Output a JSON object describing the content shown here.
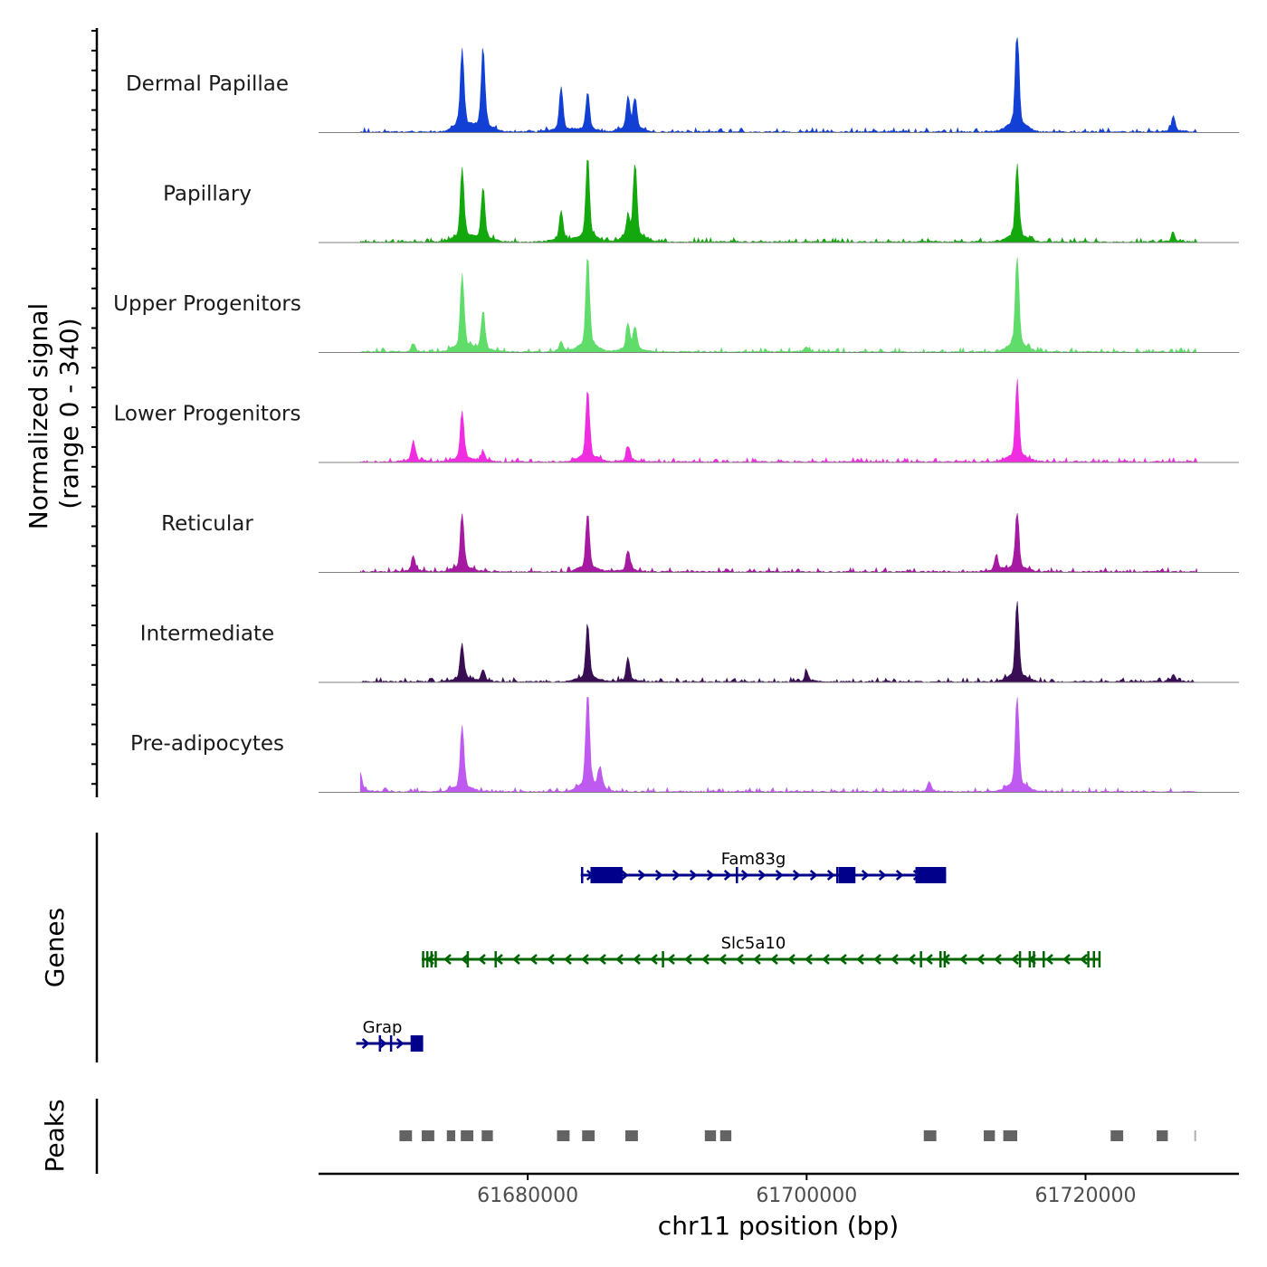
{
  "chart_data": {
    "type": "area",
    "title": "",
    "chromosome": "chr11",
    "xlabel": "chr11 position (bp)",
    "ylabel_line1": "Normalized signal",
    "ylabel_line2": "(range 0 - 340)",
    "y_range": [
      0,
      340
    ],
    "xlim": [
      61665000,
      61731000
    ],
    "x_ticks": [
      61680000,
      61700000,
      61720000
    ],
    "x_tick_labels": [
      "61680000",
      "61700000",
      "61720000"
    ],
    "tracks": [
      {
        "name": "Dermal Papillae",
        "color": "#1240d4",
        "peaks": [
          [
            61675300,
            0.78
          ],
          [
            61676800,
            0.78
          ],
          [
            61682400,
            0.42
          ],
          [
            61684300,
            0.38
          ],
          [
            61687200,
            0.32
          ],
          [
            61687700,
            0.3
          ],
          [
            61715100,
            1.0
          ],
          [
            61726300,
            0.15
          ]
        ]
      },
      {
        "name": "Papillary",
        "color": "#13a80d",
        "peaks": [
          [
            61675300,
            0.7
          ],
          [
            61676800,
            0.52
          ],
          [
            61682400,
            0.3
          ],
          [
            61684300,
            0.78
          ],
          [
            61687200,
            0.2
          ],
          [
            61687700,
            0.73
          ],
          [
            61715100,
            0.73
          ],
          [
            61726300,
            0.08
          ]
        ]
      },
      {
        "name": "Upper Progenitors",
        "color": "#5fdc6a",
        "peaks": [
          [
            61671800,
            0.08
          ],
          [
            61675300,
            0.73
          ],
          [
            61676800,
            0.38
          ],
          [
            61682400,
            0.1
          ],
          [
            61684300,
            0.92
          ],
          [
            61687200,
            0.25
          ],
          [
            61687700,
            0.22
          ],
          [
            61700000,
            0.05
          ],
          [
            61715100,
            0.92
          ]
        ]
      },
      {
        "name": "Lower Progenitors",
        "color": "#f02de0",
        "peaks": [
          [
            61671800,
            0.2
          ],
          [
            61675300,
            0.47
          ],
          [
            61676800,
            0.1
          ],
          [
            61684300,
            0.68
          ],
          [
            61687200,
            0.15
          ],
          [
            61715100,
            0.75
          ]
        ]
      },
      {
        "name": "Reticular",
        "color": "#a51aa0",
        "peaks": [
          [
            61671800,
            0.15
          ],
          [
            61675300,
            0.55
          ],
          [
            61684300,
            0.55
          ],
          [
            61687200,
            0.2
          ],
          [
            61713600,
            0.15
          ],
          [
            61715100,
            0.55
          ]
        ]
      },
      {
        "name": "Intermediate",
        "color": "#3a0e55",
        "peaks": [
          [
            61675300,
            0.35
          ],
          [
            61676800,
            0.12
          ],
          [
            61684300,
            0.53
          ],
          [
            61687200,
            0.22
          ],
          [
            61700000,
            0.1
          ],
          [
            61715100,
            0.76
          ],
          [
            61726300,
            0.07
          ]
        ]
      },
      {
        "name": "Pre-adipocytes",
        "color": "#be5af0",
        "peaks": [
          [
            61668000,
            0.18
          ],
          [
            61675300,
            0.62
          ],
          [
            61684300,
            0.95
          ],
          [
            61685200,
            0.2
          ],
          [
            61708800,
            0.1
          ],
          [
            61715100,
            0.92
          ]
        ]
      }
    ],
    "genes": [
      {
        "name": "Fam83g",
        "strand": "+",
        "color": "#00008b",
        "start": 61683800,
        "end": 61710000,
        "exons": [
          [
            61684500,
            61686800
          ],
          [
            61702300,
            61703500
          ],
          [
            61707800,
            61710000
          ]
        ],
        "markers": [
          61683900,
          61695000,
          61702200
        ]
      },
      {
        "name": "Slc5a10",
        "strand": "-",
        "color": "#006400",
        "start": 61672400,
        "end": 61721000,
        "exons": [],
        "markers": [
          61672500,
          61672800,
          61673100,
          61673400,
          61675700,
          61677700,
          61689700,
          61708200,
          61709600,
          61709900,
          61715300,
          61716000,
          61716300,
          61717000,
          61720200,
          61720600,
          61721000
        ]
      },
      {
        "name": "Grap",
        "strand": "+",
        "color": "#00008b",
        "start": 61667700,
        "end": 61672500,
        "exons": [
          [
            61671600,
            61672500
          ]
        ],
        "markers": [
          61669400,
          61670200
        ]
      }
    ],
    "peaks_label": "Peaks",
    "genes_label": "Genes",
    "peak_regions": [
      [
        61670800,
        61671700
      ],
      [
        61672400,
        61673300
      ],
      [
        61674200,
        61674800
      ],
      [
        61675200,
        61676100
      ],
      [
        61676700,
        61677500
      ],
      [
        61682100,
        61683000
      ],
      [
        61683900,
        61684800
      ],
      [
        61687000,
        61687900
      ],
      [
        61692700,
        61693500
      ],
      [
        61693800,
        61694600
      ],
      [
        61708400,
        61709300
      ],
      [
        61712700,
        61713500
      ],
      [
        61714100,
        61715100
      ],
      [
        61721800,
        61722700
      ],
      [
        61725100,
        61725900
      ],
      [
        61727800,
        61727900
      ]
    ]
  }
}
